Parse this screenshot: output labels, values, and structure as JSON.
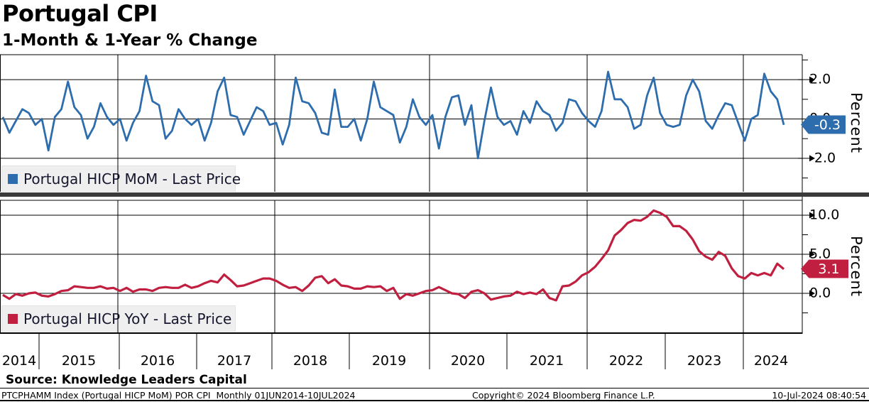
{
  "title": "Portugal CPI",
  "subtitle": "1-Month & 1-Year % Change",
  "source_line": "Source: Knowledge Leaders Capital",
  "footer": {
    "left": "PTCPHAMM Index (Portugal HICP MoM) POR CPI  Monthly 01JUN2014-10JUL2024",
    "center": "Copyright© 2024 Bloomberg Finance L.P.",
    "right": "10-Jul-2024 08:40:54"
  },
  "colors": {
    "mom_line": "#2e6dad",
    "yoy_line": "#c01f3f",
    "grid": "#000000",
    "separator": "#3a3a3a",
    "legend_bg": "#efefef"
  },
  "x_axis": {
    "years": [
      "2014",
      "2015",
      "2016",
      "2017",
      "2018",
      "2019",
      "2020",
      "2021",
      "2022",
      "2023",
      "2024"
    ]
  },
  "panels": [
    {
      "legend": "Portugal HICP MoM - Last Price",
      "axis_label": "Percent",
      "last_price": "-0.3",
      "tick_labels": [
        "2.0",
        "0.0",
        "-2.0"
      ]
    },
    {
      "legend": "Portugal HICP YoY - Last Price",
      "axis_label": "Percent",
      "last_price": "3.1",
      "tick_labels": [
        "10.0",
        "5.0",
        "0.0"
      ]
    }
  ],
  "chart_data": [
    {
      "type": "line",
      "name": "Portugal HICP MoM - Last Price",
      "frequency": "monthly",
      "x_start": "2014-06",
      "x_end": "2024-06",
      "xlabel": "",
      "ylabel": "Percent",
      "ylim": [
        -3.7,
        3.2
      ],
      "grid_y": [
        2.0,
        0.0,
        -2.0
      ],
      "minor_ticks_y": [
        3.0,
        1.0,
        -1.0,
        -3.0
      ],
      "grid_x_years": [
        2016,
        2018,
        2020,
        2022,
        2024
      ],
      "last_value": -0.3,
      "values": [
        0.1,
        -0.7,
        -0.1,
        0.5,
        0.3,
        -0.3,
        0.0,
        -1.6,
        0.1,
        0.5,
        1.9,
        0.6,
        0.2,
        -1.0,
        -0.4,
        0.8,
        0.1,
        -0.3,
        0.0,
        -1.1,
        -0.2,
        0.4,
        2.2,
        0.9,
        0.7,
        -1.0,
        -0.6,
        0.5,
        0.0,
        -0.3,
        0.0,
        -1.1,
        -0.2,
        1.4,
        2.1,
        0.2,
        0.1,
        -0.8,
        -0.1,
        0.6,
        0.4,
        -0.3,
        -0.2,
        -1.3,
        -0.3,
        2.1,
        0.9,
        0.8,
        0.3,
        -0.7,
        -0.8,
        1.5,
        -0.4,
        -0.4,
        0.0,
        -1.1,
        0.0,
        1.9,
        0.6,
        0.4,
        0.2,
        -1.2,
        -0.4,
        1.0,
        0.1,
        -0.3,
        0.2,
        -1.5,
        0.1,
        1.1,
        1.2,
        -0.3,
        0.7,
        -2.0,
        -0.1,
        1.6,
        0.1,
        -0.3,
        -0.1,
        -0.8,
        0.4,
        -0.2,
        0.9,
        0.4,
        0.2,
        -0.6,
        -0.2,
        1.0,
        0.9,
        0.3,
        -0.1,
        -0.4,
        0.4,
        2.4,
        1.0,
        1.0,
        0.6,
        -0.5,
        -0.3,
        1.2,
        2.1,
        0.3,
        -0.3,
        -0.4,
        -0.3,
        1.2,
        2.0,
        1.4,
        -0.1,
        -0.5,
        0.2,
        0.8,
        0.7,
        -0.2,
        -1.1,
        0.0,
        0.2,
        2.3,
        1.4,
        1.0,
        -0.3
      ]
    },
    {
      "type": "line",
      "name": "Portugal HICP YoY - Last Price",
      "frequency": "monthly",
      "x_start": "2014-06",
      "x_end": "2024-06",
      "xlabel": "",
      "ylabel": "Percent",
      "ylim": [
        -5.0,
        11.9
      ],
      "grid_y": [
        10.0,
        5.0,
        0.0
      ],
      "minor_ticks_y": [
        7.5,
        2.5,
        -2.5
      ],
      "grid_x_years": [
        2016,
        2018,
        2020,
        2022,
        2024
      ],
      "last_value": 3.1,
      "values": [
        -0.2,
        -0.7,
        -0.1,
        -0.3,
        0.0,
        0.1,
        -0.3,
        -0.4,
        -0.1,
        0.3,
        0.4,
        0.9,
        0.8,
        0.7,
        0.7,
        0.9,
        0.6,
        0.7,
        0.3,
        0.7,
        0.2,
        0.5,
        0.5,
        0.3,
        0.7,
        0.8,
        0.7,
        0.7,
        1.1,
        0.7,
        0.9,
        1.3,
        1.6,
        1.4,
        2.4,
        1.7,
        0.9,
        1.0,
        1.3,
        1.6,
        1.9,
        1.9,
        1.6,
        1.1,
        0.7,
        0.8,
        0.3,
        1.0,
        2.0,
        2.2,
        1.3,
        1.8,
        1.0,
        0.9,
        0.6,
        0.6,
        0.9,
        0.8,
        0.9,
        0.3,
        0.7,
        -0.7,
        -0.1,
        -0.3,
        0.0,
        0.3,
        0.4,
        0.8,
        0.4,
        0.0,
        -0.1,
        -0.6,
        0.2,
        0.4,
        0.0,
        -0.8,
        -0.6,
        -0.4,
        -0.3,
        0.2,
        -0.1,
        0.1,
        -0.1,
        0.5,
        -0.6,
        -0.9,
        0.9,
        1.0,
        1.5,
        2.3,
        2.7,
        3.4,
        4.4,
        5.5,
        7.4,
        8.1,
        9.0,
        9.4,
        9.3,
        9.8,
        10.6,
        10.3,
        9.8,
        8.6,
        8.6,
        8.0,
        6.9,
        5.4,
        4.7,
        4.3,
        5.3,
        4.8,
        3.2,
        2.2,
        1.9,
        2.6,
        2.3,
        2.6,
        2.3,
        3.8,
        3.1
      ]
    }
  ]
}
